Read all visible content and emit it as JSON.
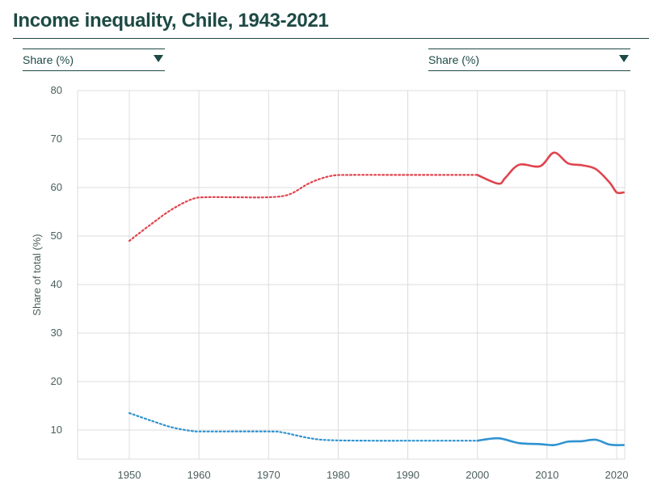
{
  "page": {
    "title": "Income inequality, Chile, 1943-2021"
  },
  "selectors": {
    "left": "Share (%)",
    "right": "Share (%)"
  },
  "colors": {
    "top10": "#e0444e",
    "bottom50": "#2e93d1",
    "grid": "#dcdcdc",
    "text": "#1d4a44"
  },
  "chart_data": {
    "type": "line",
    "title": "Income inequality, Chile, 1943-2021",
    "ylabel": "Share of total (%)",
    "xlabel": "",
    "xlim": [
      1943,
      2022
    ],
    "ylim": [
      5,
      80
    ],
    "x_ticks": [
      1950,
      1960,
      1970,
      1980,
      1990,
      2000,
      2010,
      2020
    ],
    "y_ticks": [
      10,
      20,
      30,
      40,
      50,
      60,
      70,
      80
    ],
    "grid": true,
    "series": [
      {
        "color": "#e0444e",
        "interpolated": [
          [
            1950,
            49.0
          ],
          [
            1953,
            52.3
          ],
          [
            1956,
            55.4
          ],
          [
            1959,
            57.6
          ],
          [
            1961,
            58.0
          ],
          [
            1965,
            58.0
          ],
          [
            1970,
            58.0
          ],
          [
            1973,
            58.6
          ],
          [
            1976,
            61.0
          ],
          [
            1979,
            62.4
          ],
          [
            1982,
            62.6
          ],
          [
            1990,
            62.6
          ],
          [
            2000,
            62.6
          ]
        ],
        "observed": [
          [
            2000,
            62.6
          ],
          [
            2003,
            60.8
          ],
          [
            2004,
            62.0
          ],
          [
            2006,
            64.7
          ],
          [
            2009,
            64.4
          ],
          [
            2011,
            67.2
          ],
          [
            2013,
            65.0
          ],
          [
            2015,
            64.6
          ],
          [
            2017,
            63.8
          ],
          [
            2019,
            61.0
          ],
          [
            2020,
            59.0
          ],
          [
            2021,
            59.0
          ]
        ]
      },
      {
        "color": "#2e93d1",
        "interpolated": [
          [
            1950,
            13.5
          ],
          [
            1953,
            12.0
          ],
          [
            1956,
            10.6
          ],
          [
            1959,
            9.8
          ],
          [
            1961,
            9.7
          ],
          [
            1970,
            9.7
          ],
          [
            1972,
            9.5
          ],
          [
            1976,
            8.3
          ],
          [
            1979,
            7.9
          ],
          [
            1985,
            7.8
          ],
          [
            1990,
            7.8
          ],
          [
            2000,
            7.8
          ]
        ],
        "observed": [
          [
            2000,
            7.8
          ],
          [
            2003,
            8.3
          ],
          [
            2006,
            7.3
          ],
          [
            2009,
            7.1
          ],
          [
            2011,
            6.9
          ],
          [
            2013,
            7.6
          ],
          [
            2015,
            7.7
          ],
          [
            2017,
            8.0
          ],
          [
            2019,
            7.0
          ],
          [
            2021,
            6.9
          ]
        ]
      }
    ]
  }
}
